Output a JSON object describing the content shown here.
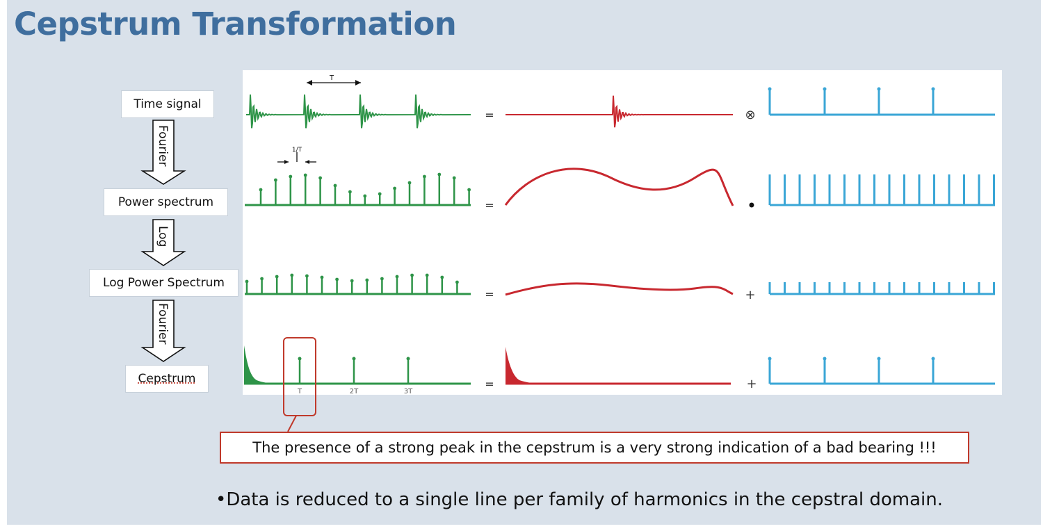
{
  "title": "Cepstrum Transformation",
  "steps": [
    {
      "label": "Time signal"
    },
    {
      "label": "Power spectrum"
    },
    {
      "label": "Log Power Spectrum"
    },
    {
      "label": "Cepstrum"
    }
  ],
  "transforms": [
    "Fourier",
    "Log",
    "Fourier"
  ],
  "operators": [
    "=",
    "⊗",
    "=",
    "•",
    "=",
    "+",
    "=",
    "+"
  ],
  "period_label": "T",
  "inverse_period_label": "1/T",
  "cepstrum_ticks": [
    "T",
    "2T",
    "3T"
  ],
  "callout": "The presence of a strong peak in the cepstrum is a very strong indication of a bad bearing !!!",
  "bullet": "•Data is reduced to a single line per family of harmonics in the cepstral domain.",
  "colors": {
    "green": "#2e9448",
    "red": "#c8282f",
    "blue": "#3aa6d6",
    "title": "#3f6e9e",
    "callout_border": "#c0392b"
  }
}
